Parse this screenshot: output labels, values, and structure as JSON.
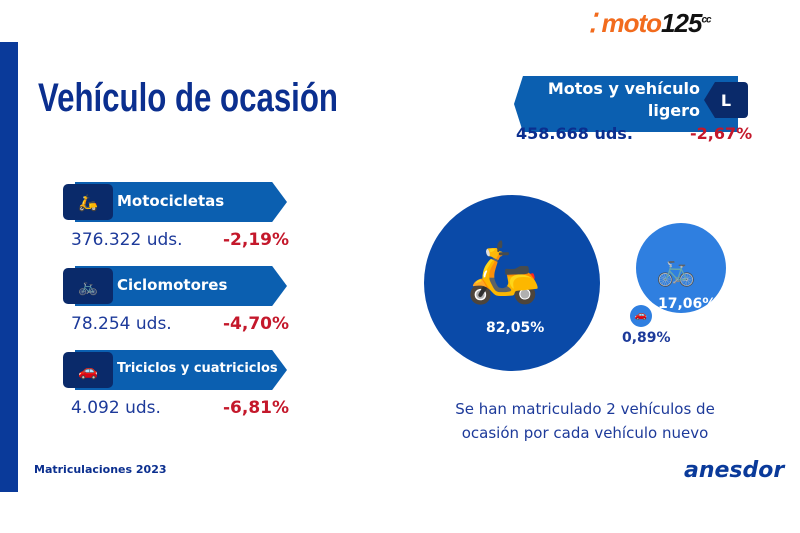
{
  "logo": {
    "brand": "moto",
    "number": "125",
    "suffix": "cc"
  },
  "title": "Vehículo de ocasión",
  "categories": [
    {
      "label": "Motocicletas",
      "units": "376.322 uds.",
      "change": "-2,19%",
      "icon": "scooter-icon"
    },
    {
      "label": "Ciclomotores",
      "units": "78.254 uds.",
      "change": "-4,70%",
      "icon": "moped-icon"
    },
    {
      "label": "Triciclos y cuatriciclos",
      "units": "4.092 uds.",
      "change": "-6,81%",
      "icon": "car-icon"
    }
  ],
  "summary": {
    "label": "Motos y vehículo ligero",
    "badge": "L",
    "units": "458.668 uds.",
    "change": "-2,67%"
  },
  "shares": {
    "motorcycles": "82,05%",
    "mopeds": "17,06%",
    "quads": "0,89%"
  },
  "note": "Se han matriculado 2 vehículos de ocasión por cada vehículo nuevo",
  "footer": "Matriculaciones 2023",
  "partner": "anesdor",
  "colors": {
    "primary": "#0b5fb0",
    "dark": "#0a2a6a",
    "negative": "#c4182b",
    "accent": "#f26b1d"
  }
}
